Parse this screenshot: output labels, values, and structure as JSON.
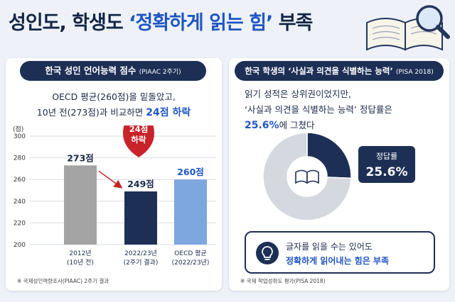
{
  "headline": {
    "prefix": "성인도, 학생도 ",
    "accent": "‘정확하게 읽는 힘’",
    "suffix": " 부족"
  },
  "left_panel": {
    "pill_title": "한국 성인 언어능력 점수",
    "pill_sub": "(PIAAC 2주기)",
    "desc_line1": "OECD 평균(260점)을 밑돌았고,",
    "desc_line2_prefix": "10년 전(273점)과 비교하면 ",
    "desc_line2_emph": "24점 하락",
    "source": "※ 국제성인역량조사(PIAAC) 2주기 결과",
    "drop_badge_line1": "24점",
    "drop_badge_line2": "하락"
  },
  "right_panel": {
    "pill_title": "한국 학생의 ‘사실과 의견을 식별하는 능력’",
    "pill_sub": "(PISA 2018)",
    "desc_line1": "읽기 성적은 상위권이었지만,",
    "desc_line2": "‘사실과 의견을 식별하는 능력’ 정답률은",
    "desc_line3_emph": "25.6%",
    "desc_line3_suffix": "에 그쳤다",
    "source": "※ 국제 학업성취도 평가(PISA 2018)",
    "callout_line1": "글자를 읽을 수는 있어도",
    "callout_line2": "정확하게 읽어내는 힘은 부족"
  },
  "colors": {
    "navy": "#1d2f55",
    "accent_blue": "#1f56c4",
    "gray_bar": "#a4a4a4",
    "oecd_bar": "#7ea6df",
    "donut_rest": "#d5d9df",
    "red": "#c8232b"
  },
  "chart_data": [
    {
      "type": "bar",
      "ylabel": "(점)",
      "ylim": [
        200,
        300
      ],
      "yticks": [
        200,
        220,
        240,
        260,
        280,
        300
      ],
      "categories": [
        [
          "2012년",
          "(10년 전)"
        ],
        [
          "2022/23년",
          "(2주기 결과)"
        ],
        [
          "OECD 평균",
          "(2022/23년)"
        ]
      ],
      "values": [
        273,
        249,
        260
      ],
      "value_labels": [
        "273점",
        "249점",
        "260점"
      ],
      "grid": true
    },
    {
      "type": "pie",
      "labels": [
        "정답률",
        ""
      ],
      "values": [
        25.6,
        74.4
      ],
      "value_label": "25.6%",
      "donut": true
    }
  ]
}
